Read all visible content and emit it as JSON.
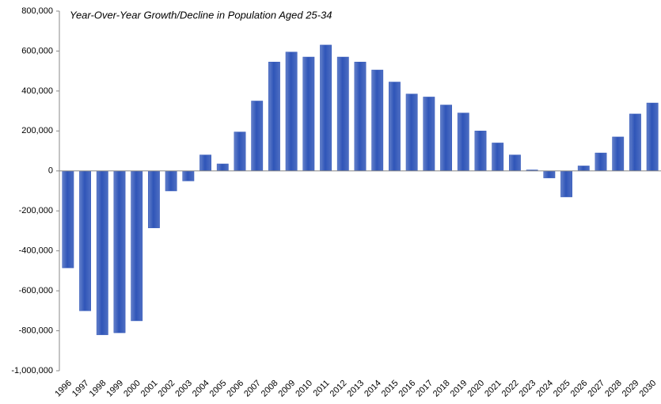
{
  "chart_data": {
    "type": "bar",
    "title": "Year-Over-Year Growth/Decline in Population Aged 25-34",
    "categories": [
      "1996",
      "1997",
      "1998",
      "1999",
      "2000",
      "2001",
      "2002",
      "2003",
      "2004",
      "2005",
      "2006",
      "2007",
      "2008",
      "2009",
      "2010",
      "2011",
      "2012",
      "2013",
      "2014",
      "2015",
      "2016",
      "2017",
      "2018",
      "2019",
      "2020",
      "2021",
      "2022",
      "2023",
      "2024",
      "2025",
      "2026",
      "2027",
      "2028",
      "2029",
      "2030"
    ],
    "values": [
      -485000,
      -700000,
      -820000,
      -810000,
      -750000,
      -285000,
      -100000,
      -50000,
      80000,
      35000,
      195000,
      350000,
      545000,
      595000,
      570000,
      630000,
      570000,
      545000,
      505000,
      445000,
      385000,
      370000,
      330000,
      290000,
      200000,
      140000,
      80000,
      5000,
      -35000,
      -130000,
      25000,
      90000,
      170000,
      285000,
      340000
    ],
    "color": "#2f55b8",
    "ylim": [
      -1000000,
      800000
    ],
    "yticks": [
      {
        "value": -1000000,
        "label": "-1,000,000"
      },
      {
        "value": -800000,
        "label": "-800,000"
      },
      {
        "value": -600000,
        "label": "-600,000"
      },
      {
        "value": -400000,
        "label": "-400,000"
      },
      {
        "value": -200000,
        "label": "-200,000"
      },
      0,
      {
        "value": 200000,
        "label": "200,000"
      },
      {
        "value": 400000,
        "label": "400,000"
      },
      {
        "value": 600000,
        "label": "600,000"
      },
      {
        "value": 800000,
        "label": "800,000"
      }
    ],
    "grid": false
  }
}
